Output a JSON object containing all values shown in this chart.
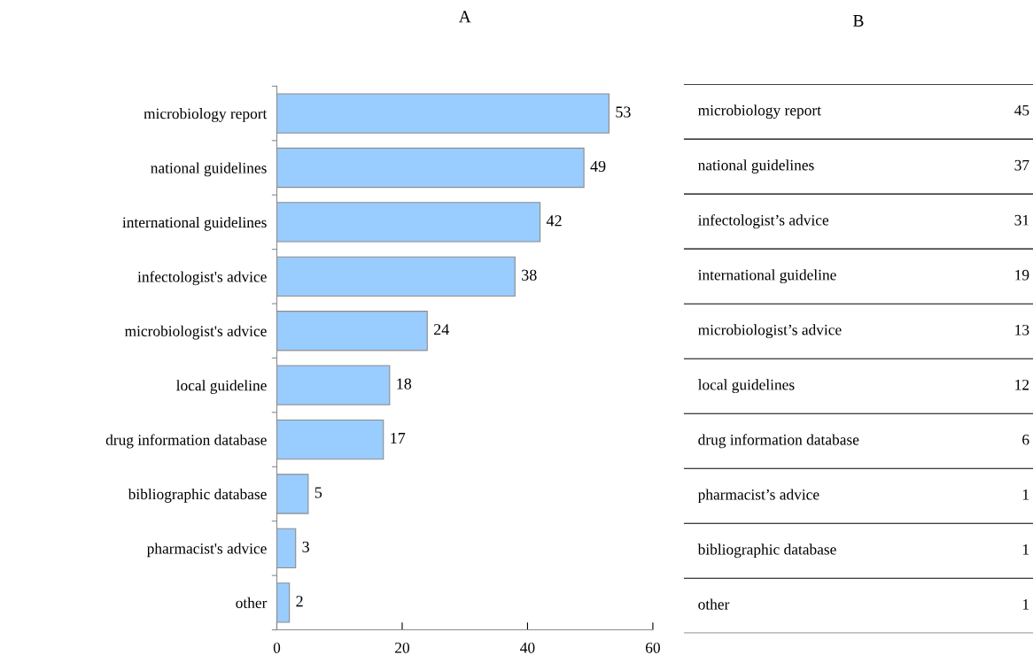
{
  "chart_data": [
    {
      "type": "bar",
      "title": "A",
      "orientation": "horizontal",
      "categories": [
        "microbiology report",
        "national guidelines",
        "international guidelines",
        "infectologist's advice",
        "microbiologist's advice",
        "local guideline",
        "drug information database",
        "bibliographic database",
        "pharmacist's advice",
        "other"
      ],
      "values": [
        53,
        49,
        42,
        38,
        24,
        18,
        17,
        5,
        3,
        2
      ],
      "color": "#99ccff",
      "xlim": [
        0,
        60
      ],
      "xticks": [
        0,
        20,
        40,
        60
      ],
      "data_labels": true,
      "grid": false,
      "legend": false
    },
    {
      "type": "other",
      "title": "B",
      "categories": [
        "microbiology report",
        "national guidelines",
        "infectologist’s advice",
        "international guideline",
        "microbiologist’s advice",
        "local guidelines",
        "drug information database",
        "pharmacist’s advice",
        "bibliographic database",
        "other"
      ],
      "values": [
        45,
        37,
        31,
        19,
        13,
        12,
        6,
        1,
        1,
        1
      ],
      "data_labels": true
    }
  ]
}
